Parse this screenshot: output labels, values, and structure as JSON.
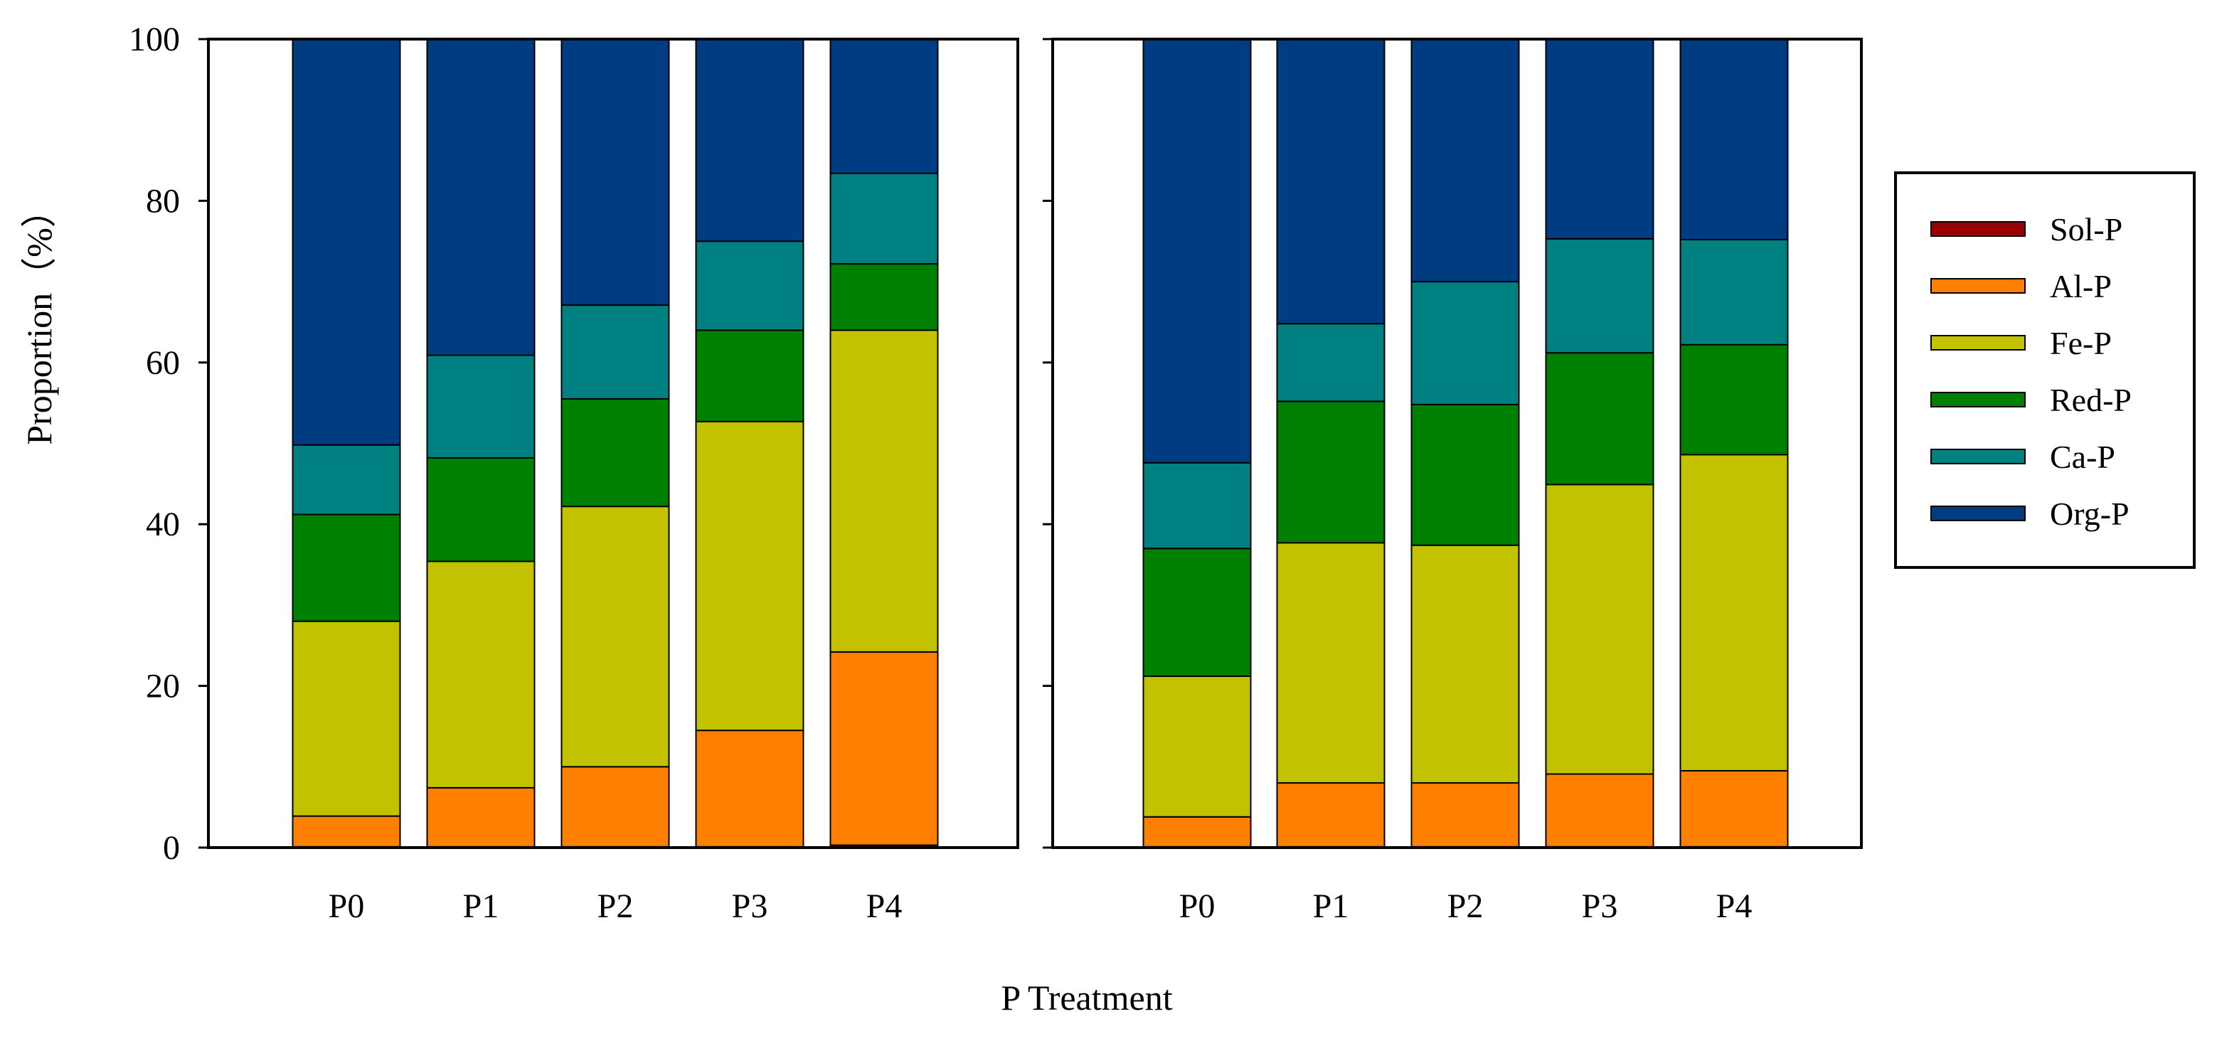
{
  "figure": {
    "ylabel": "Proportion（%）",
    "xlabel": "P Treatment"
  },
  "legend": {
    "placement": "right",
    "entries": [
      {
        "name": "Sol-P",
        "color": "#990000"
      },
      {
        "name": "Al-P",
        "color": "#FF8000"
      },
      {
        "name": "Fe-P",
        "color": "#C2C200"
      },
      {
        "name": "Red-P",
        "color": "#008000"
      },
      {
        "name": "Ca-P",
        "color": "#008080"
      },
      {
        "name": "Org-P",
        "color": "#003C82"
      }
    ]
  },
  "chart_data": [
    {
      "type": "bar",
      "stacked": true,
      "panel": "left",
      "categories": [
        "P0",
        "P1",
        "P2",
        "P3",
        "P4"
      ],
      "ylim": [
        0,
        100
      ],
      "yticks": [
        0,
        20,
        40,
        60,
        80,
        100
      ],
      "series": [
        {
          "name": "Sol-P",
          "values": [
            0.1,
            0.1,
            0.1,
            0.1,
            0.3
          ]
        },
        {
          "name": "Al-P",
          "values": [
            3.8,
            7.3,
            9.9,
            14.4,
            23.9
          ]
        },
        {
          "name": "Fe-P",
          "values": [
            24.1,
            28.0,
            32.2,
            38.2,
            39.8
          ]
        },
        {
          "name": "Red-P",
          "values": [
            13.2,
            12.8,
            13.3,
            11.3,
            8.2
          ]
        },
        {
          "name": "Ca-P",
          "values": [
            8.6,
            12.7,
            11.6,
            11.0,
            11.2
          ]
        },
        {
          "name": "Org-P",
          "values": [
            50.2,
            39.1,
            32.9,
            25.0,
            16.6
          ]
        }
      ]
    },
    {
      "type": "bar",
      "stacked": true,
      "panel": "right",
      "categories": [
        "P0",
        "P1",
        "P2",
        "P3",
        "P4"
      ],
      "ylim": [
        0,
        100
      ],
      "yticks": [
        0,
        20,
        40,
        60,
        80,
        100
      ],
      "series": [
        {
          "name": "Sol-P",
          "values": [
            0.1,
            0.1,
            0.1,
            0.1,
            0.1
          ]
        },
        {
          "name": "Al-P",
          "values": [
            3.7,
            7.9,
            7.9,
            9.0,
            9.4
          ]
        },
        {
          "name": "Fe-P",
          "values": [
            17.4,
            29.7,
            29.4,
            35.8,
            39.1
          ]
        },
        {
          "name": "Red-P",
          "values": [
            15.8,
            17.5,
            17.4,
            16.3,
            13.6
          ]
        },
        {
          "name": "Ca-P",
          "values": [
            10.6,
            9.6,
            15.2,
            14.1,
            13.0
          ]
        },
        {
          "name": "Org-P",
          "values": [
            52.4,
            35.2,
            30.0,
            24.7,
            24.8
          ]
        }
      ]
    }
  ]
}
